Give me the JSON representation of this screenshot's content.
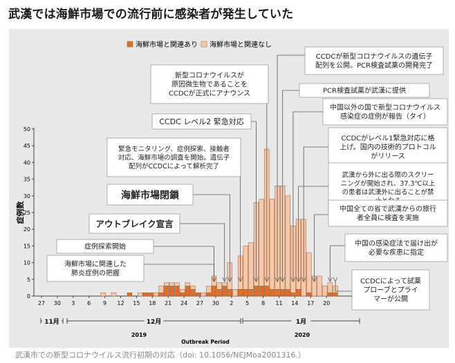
{
  "headline": "武漢では海鮮市場での流行前に感染者が発生していた",
  "caption": "武漢市での新型コロナウイルス流行初期の対応（doi: 10.1056/NEJMoa2001316.）",
  "colors": {
    "background": "#e9e9e9",
    "linked": "#de6f28",
    "unlinked": "#f8c9a8",
    "bar_stroke": "#8a5a3a",
    "annotation_box": "#ffffff"
  },
  "chart_data": {
    "type": "bar",
    "stacked": true,
    "x": [
      "12-08",
      "12-09",
      "12-10",
      "12-11",
      "12-12",
      "12-13",
      "12-14",
      "12-15",
      "12-16",
      "12-17",
      "12-18",
      "12-19",
      "12-20",
      "12-21",
      "12-22",
      "12-23",
      "12-24",
      "12-25",
      "12-26",
      "12-27",
      "12-28",
      "12-29",
      "12-30",
      "12-31",
      "01-01",
      "01-02",
      "01-03",
      "01-04",
      "01-05",
      "01-06",
      "01-07",
      "01-08",
      "01-09",
      "01-10",
      "01-11",
      "01-12",
      "01-13",
      "01-14",
      "01-15",
      "01-16",
      "01-17",
      "01-18",
      "01-19",
      "01-20",
      "01-21",
      "01-22"
    ],
    "series": [
      {
        "name": "海鮮市場と関連あり",
        "values": [
          0,
          0,
          0,
          0,
          0,
          1,
          0,
          0,
          1,
          1,
          0,
          1,
          3,
          3,
          3,
          1,
          3,
          2,
          1,
          0,
          1,
          3,
          2,
          3,
          2,
          0,
          2,
          2,
          2,
          3,
          3,
          3,
          2,
          2,
          2,
          2,
          1,
          2,
          0,
          1,
          0,
          0,
          0,
          1,
          1,
          0
        ]
      },
      {
        "name": "海鮮市場と関連なし",
        "values": [
          1,
          0,
          1,
          0,
          0,
          0,
          0,
          1,
          0,
          0,
          1,
          2,
          1,
          1,
          1,
          1,
          1,
          1,
          0,
          1,
          2,
          3,
          2,
          1,
          8,
          2,
          10,
          13,
          14,
          25,
          26,
          41,
          27,
          31,
          31,
          28,
          20,
          21,
          23,
          12,
          6,
          6,
          3,
          3,
          2,
          0
        ]
      }
    ],
    "y_ticks": [
      0,
      5,
      10,
      15,
      20,
      25,
      30,
      35,
      40,
      45,
      50
    ],
    "ylim": [
      0,
      50
    ],
    "ylabel": "症例数",
    "xlabel": "Outbreak Period",
    "x_ticks": [
      "27",
      "30",
      "3",
      "6",
      "9",
      "12",
      "15",
      "18",
      "21",
      "24",
      "27",
      "30",
      "2",
      "5",
      "8",
      "11",
      "14",
      "17",
      "20"
    ],
    "months": [
      "11月",
      "12月",
      "1月"
    ],
    "years": [
      "2019",
      "2020"
    ],
    "legend_position": "top",
    "grid": false,
    "annotations": [
      {
        "lines": [
          "CCDCが新型コロナウイルスの遺伝子",
          "配列を公開。PCR検査試薬の開発完了"
        ],
        "date": "01-10"
      },
      {
        "lines": [
          "新型コロナウイルスが",
          "原因微生物であることを",
          "CCDCが正式にアナウンス"
        ],
        "date": "01-08"
      },
      {
        "lines": [
          "PCR検査試薬が武漢に提供"
        ],
        "date": "01-11"
      },
      {
        "lines": [
          "中国以外の国で新型コロナウイルス",
          "感染症の症例が報告（タイ）"
        ],
        "date": "01-13"
      },
      {
        "lines": [
          "CCDC レベル2 緊急対応"
        ],
        "date": "01-06"
      },
      {
        "lines": [
          "CCDCがレベル1緊急対応に格",
          "上げ。国内の技術的プロトコル",
          "がリリース"
        ],
        "date": "01-15"
      },
      {
        "lines": [
          "緊急モニタリング、症例探索、接触者",
          "対応、海鮮市場の調査を開始。遺伝子",
          "配列がCCDCによって解析完了"
        ],
        "date": "01-03"
      },
      {
        "lines": [
          "武漢から外に出る際のスクリー",
          "ニングが開始され、37.3℃以上",
          "の患者は武漢外に出ることが禁",
          "止となる"
        ],
        "date": "01-14"
      },
      {
        "lines": [
          "海鮮市場閉鎖"
        ],
        "date": "01-01"
      },
      {
        "lines": [
          "中国全ての省で武漢からの旅行",
          "者全員に検査を実施"
        ],
        "date": "01-17"
      },
      {
        "lines": [
          "アウトブレイク宣言"
        ],
        "date": "12-31"
      },
      {
        "lines": [
          "中国の感染症法で届け出が",
          "必要な疾患に指定"
        ],
        "date": "01-20"
      },
      {
        "lines": [
          "症例探索開始"
        ],
        "date": "12-29"
      },
      {
        "lines": [
          "海鮮市場に関連した",
          "肺炎症例の把握"
        ],
        "date": "12-29"
      },
      {
        "lines": [
          "CCDCによって試薬",
          "プローブとプライ",
          "マーが公開"
        ],
        "date": "01-21"
      }
    ]
  }
}
